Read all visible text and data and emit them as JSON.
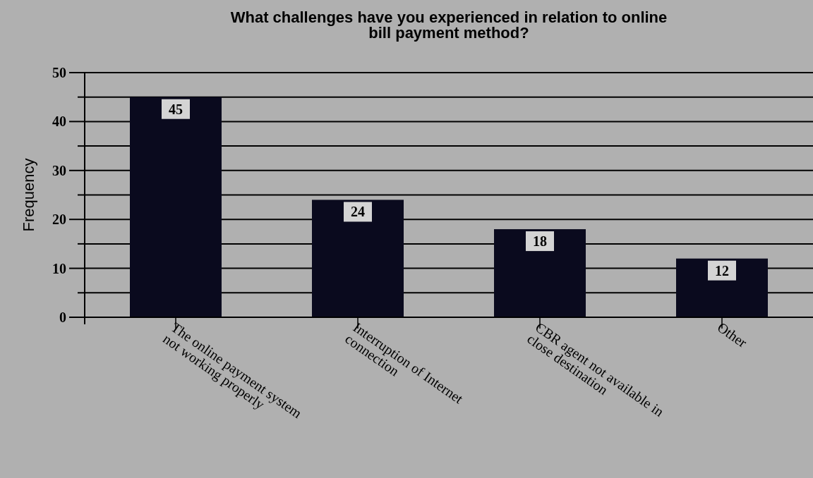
{
  "chart_data": {
    "type": "bar",
    "title": "What challenges have you experienced in relation to online\nbill payment method?",
    "ylabel": "Frequency",
    "categories": [
      "The online payment system not working properly",
      "Interruption of Internet connection",
      "CBR agent not available in close destination",
      "Other"
    ],
    "values": [
      45,
      24,
      18,
      12
    ],
    "color": "#0a0a1e",
    "ylim": [
      0,
      50
    ],
    "yticks": [
      0,
      {
        "value": 5,
        "label": null
      },
      10,
      {
        "value": 15,
        "label": null
      },
      20,
      {
        "value": 25,
        "label": null
      },
      30,
      {
        "value": 35,
        "label": null
      },
      40,
      {
        "value": 45,
        "label": null
      },
      50
    ],
    "grid": true,
    "data_labels": true
  }
}
